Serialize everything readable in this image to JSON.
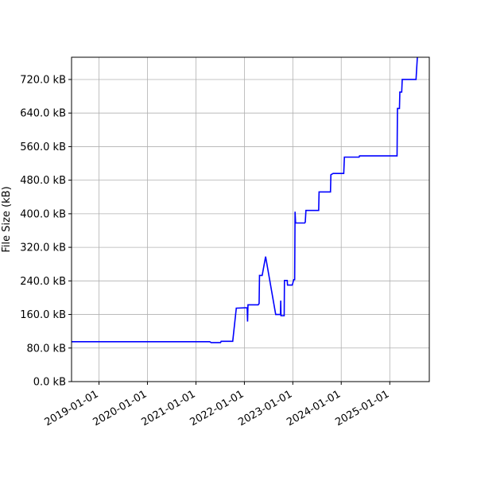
{
  "chart_data": {
    "type": "line",
    "ylabel": "File Size (kB)",
    "x": [
      "2018-06-08",
      "2021-04-15",
      "2021-04-25",
      "2021-07-05",
      "2021-07-10",
      "2021-10-05",
      "2021-11-01",
      "2022-01-22",
      "2022-01-25",
      "2022-01-28",
      "2022-04-15",
      "2022-04-22",
      "2022-04-25",
      "2022-05-15",
      "2022-06-10",
      "2022-08-25",
      "2022-09-30",
      "2022-10-02",
      "2022-10-04",
      "2022-10-28",
      "2022-10-30",
      "2022-11-20",
      "2022-11-22",
      "2022-12-28",
      "2023-01-08",
      "2023-01-15",
      "2023-01-18",
      "2023-01-22",
      "2023-04-01",
      "2023-04-05",
      "2023-04-10",
      "2023-07-15",
      "2023-07-18",
      "2023-10-12",
      "2023-10-15",
      "2023-11-01",
      "2024-01-20",
      "2024-01-25",
      "2024-05-15",
      "2024-05-18",
      "2025-02-25",
      "2025-02-28",
      "2025-03-15",
      "2025-03-18",
      "2025-04-01",
      "2025-04-05",
      "2025-07-18",
      "2025-07-28"
    ],
    "series": [
      {
        "color": "#0000ff",
        "values": [
          95,
          95,
          93,
          93,
          96,
          96,
          175,
          176,
          143,
          183,
          183,
          186,
          253,
          253,
          298,
          160,
          160,
          193,
          157,
          157,
          241,
          241,
          230,
          230,
          243,
          243,
          405,
          378,
          378,
          380,
          408,
          408,
          452,
          452,
          493,
          496,
          496,
          535,
          535,
          538,
          538,
          651,
          651,
          690,
          690,
          720,
          720,
          773
        ]
      }
    ],
    "xlim": [
      "2018-06-08",
      "2025-10-26"
    ],
    "xticks": [
      "2019-01-01",
      "2020-01-01",
      "2021-01-01",
      "2022-01-01",
      "2023-01-01",
      "2024-01-01",
      "2025-01-01"
    ],
    "ylim": [
      0,
      773
    ],
    "yticks": [
      {
        "value": 0,
        "label": "0.0 kB"
      },
      {
        "value": 80,
        "label": "80.0 kB"
      },
      {
        "value": 160,
        "label": "160.0 kB"
      },
      {
        "value": 240,
        "label": "240.0 kB"
      },
      {
        "value": 320,
        "label": "320.0 kB"
      },
      {
        "value": 400,
        "label": "400.0 kB"
      },
      {
        "value": 480,
        "label": "480.0 kB"
      },
      {
        "value": 560,
        "label": "560.0 kB"
      },
      {
        "value": 640,
        "label": "640.0 kB"
      },
      {
        "value": 720,
        "label": "720.0 kB"
      }
    ],
    "grid": true
  }
}
